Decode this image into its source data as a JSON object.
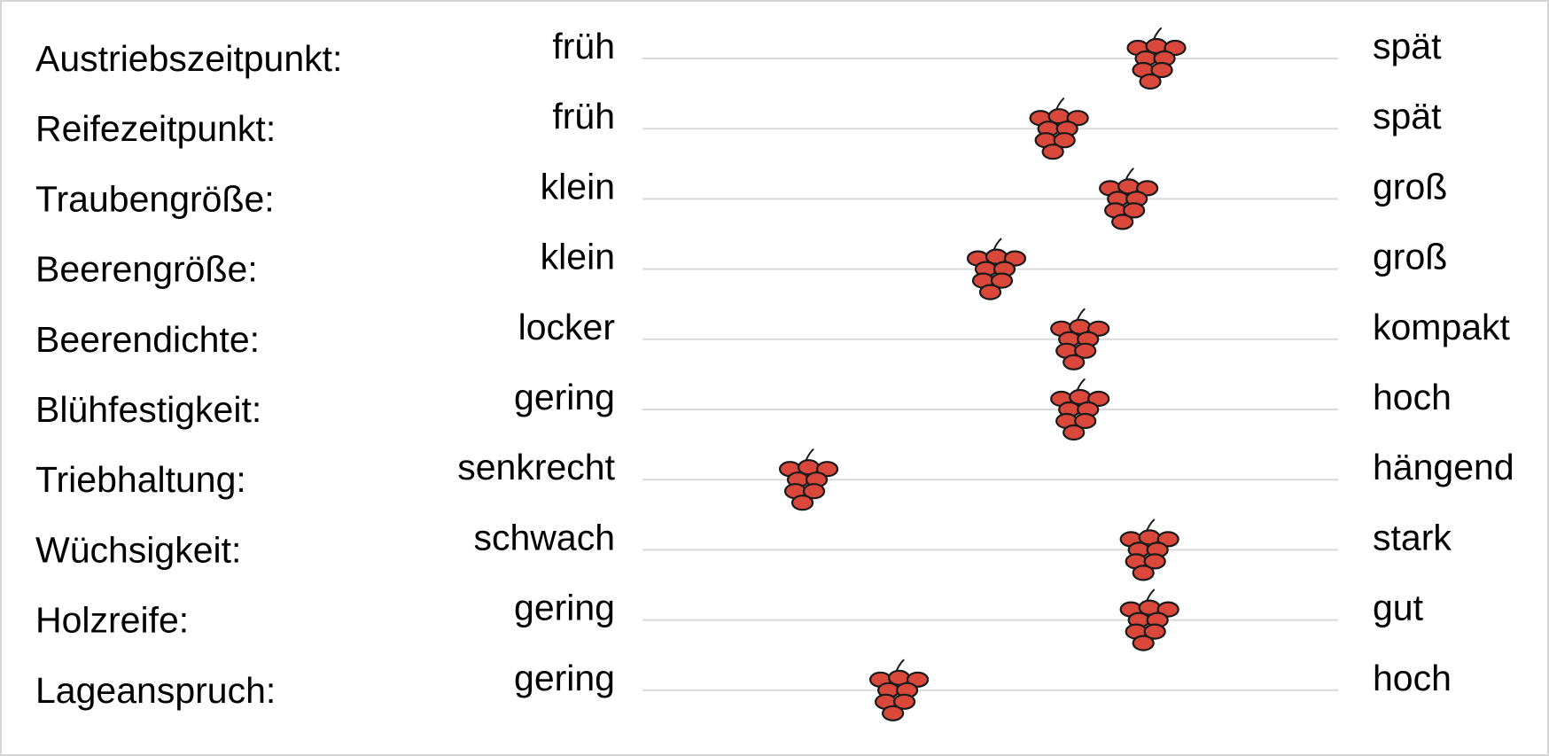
{
  "chart_data": {
    "type": "scatter",
    "title": "",
    "xlabel": "",
    "ylabel": "",
    "xlim": [
      0,
      1
    ],
    "marker": "grape-cluster-icon",
    "colors": {
      "marker_fill": "#d9483b",
      "marker_outline": "#1a1a1a",
      "track": "#d9d9d9",
      "text": "#000000"
    },
    "rows": [
      {
        "label": "Austriebszeitpunkt:",
        "left": "früh",
        "right": "spät",
        "value": 0.73
      },
      {
        "label": "Reifezeitpunkt:",
        "left": "früh",
        "right": "spät",
        "value": 0.59
      },
      {
        "label": "Traubengröße:",
        "left": "klein",
        "right": "groß",
        "value": 0.69
      },
      {
        "label": "Beerengröße:",
        "left": "klein",
        "right": "groß",
        "value": 0.5
      },
      {
        "label": "Beerendichte:",
        "left": "locker",
        "right": "kompakt",
        "value": 0.62
      },
      {
        "label": "Blühfestigkeit:",
        "left": "gering",
        "right": "hoch",
        "value": 0.62
      },
      {
        "label": "Triebhaltung:",
        "left": "senkrecht",
        "right": "hängend",
        "value": 0.23
      },
      {
        "label": "Wüchsigkeit:",
        "left": "schwach",
        "right": "stark",
        "value": 0.72
      },
      {
        "label": "Holzreife:",
        "left": "gering",
        "right": "gut",
        "value": 0.72
      },
      {
        "label": "Lageanspruch:",
        "left": "gering",
        "right": "hoch",
        "value": 0.36
      }
    ]
  }
}
